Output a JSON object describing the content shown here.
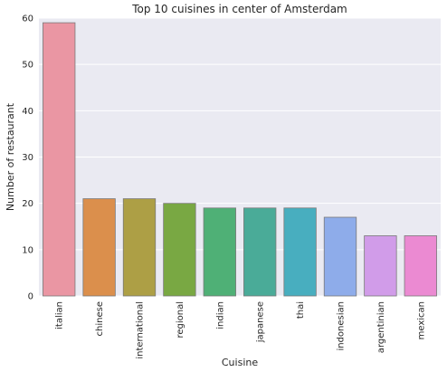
{
  "chart_data": {
    "type": "bar",
    "title": "Top 10 cuisines in center of Amsterdam",
    "xlabel": "Cuisine",
    "ylabel": "Number of restaurant",
    "categories": [
      "italian",
      "chinese",
      "international",
      "regional",
      "indian",
      "japanese",
      "thai",
      "indonesian",
      "argentinian",
      "mexican"
    ],
    "values": [
      59,
      21,
      21,
      20,
      19,
      19,
      19,
      17,
      13,
      13
    ],
    "ylim": [
      0,
      60
    ],
    "yticks": [
      0,
      10,
      20,
      30,
      40,
      50,
      60
    ],
    "grid": true,
    "colors": [
      "#ea96a3",
      "#db8f4c",
      "#ad9f45",
      "#79a843",
      "#4fb076",
      "#4aab98",
      "#48aebf",
      "#8eacea",
      "#d19ce9",
      "#eb8ad2"
    ],
    "background_color": "#eaeaf2",
    "edge_color": "#7a7a7a"
  }
}
